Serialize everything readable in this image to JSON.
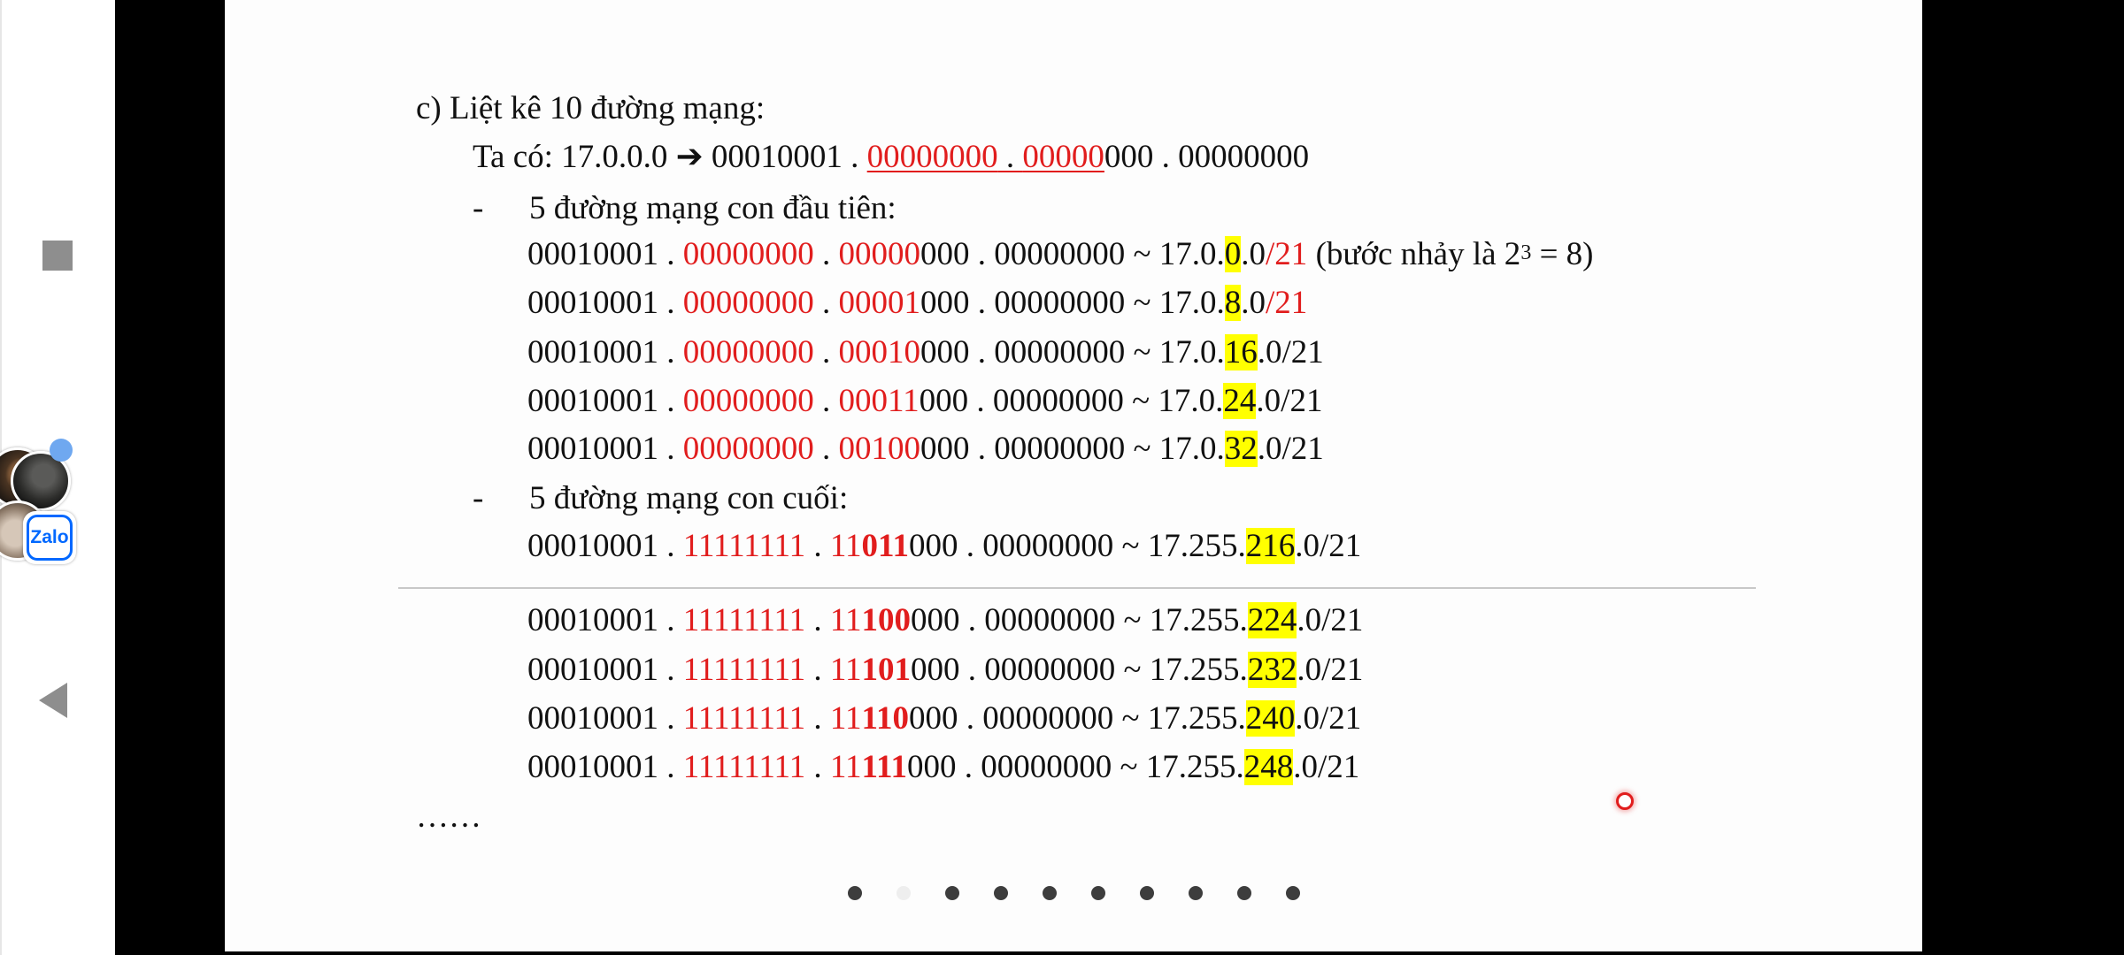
{
  "slide": {
    "heading": "c)  Liệt kê 10 đường mạng:",
    "intro": {
      "prefix": "Ta có: 17.0.0.0 ",
      "arrow": "➔",
      "octet1": " 00010001 . ",
      "octet2": "00000000",
      "dot": " . ",
      "octet3a": "00000",
      "octet3b": "000 . 00000000"
    },
    "section_first": {
      "bullet": "-",
      "title": "5 đường mạng con đầu tiên:"
    },
    "first_rows": [
      {
        "a": "00010001 . ",
        "r1": "00000000",
        "d1": " . ",
        "r2": "00000",
        "b2": "",
        "c": "000 . 00000000 ~ 17.0.",
        "h": "0",
        "t": ".0",
        "m": "/21",
        "note1": " (bước nhảy là 2",
        "sup": "3",
        "note2": " = 8)"
      },
      {
        "a": "00010001 . ",
        "r1": "00000000",
        "d1": " . ",
        "r2": "00001",
        "b2": "",
        "c": "000 . 00000000 ~ 17.0.",
        "h": "8",
        "t": ".0",
        "m": "/21"
      },
      {
        "a": "00010001 . ",
        "r1": "00000000",
        "d1": " . ",
        "r2": "00010",
        "b2": "",
        "c": "000 . 00000000 ~ 17.0.",
        "h": "16",
        "t": ".0/21"
      },
      {
        "a": "00010001 . ",
        "r1": "00000000",
        "d1": " . ",
        "r2": "00011",
        "b2": "",
        "c": "000 . 00000000 ~ 17.0.",
        "h": "24",
        "t": ".0/21"
      },
      {
        "a": "00010001 . ",
        "r1": "00000000",
        "d1": " . ",
        "r2": "00100",
        "b2": "",
        "c": "000 . 00000000 ~ 17.0.",
        "h": "32",
        "t": ".0/21"
      }
    ],
    "section_last": {
      "bullet": "-",
      "title": "5 đường mạng con cuối:"
    },
    "last_rows": [
      {
        "a": "00010001 . ",
        "r1": "11111111",
        "d1": " . ",
        "r2": "11",
        "b2": "011",
        "c": "000 . 00000000 ~ 17.255.",
        "h": "216",
        "t": ".0/21"
      },
      {
        "a": "00010001 . ",
        "r1": "11111111",
        "d1": " . ",
        "r2": "11",
        "b2": "100",
        "c": "000 . 00000000 ~ 17.255.",
        "h": "224",
        "t": ".0/21"
      },
      {
        "a": "00010001 . ",
        "r1": "11111111",
        "d1": " . ",
        "r2": "11",
        "b2": "101",
        "c": "000 . 00000000 ~ 17.255.",
        "h": "232",
        "t": ".0/21"
      },
      {
        "a": "00010001 . ",
        "r1": "11111111",
        "d1": " . ",
        "r2": "11",
        "b2": "110",
        "c": "000 . 00000000 ~ 17.255.",
        "h": "240",
        "t": ".0/21"
      },
      {
        "a": "00010001 . ",
        "r1": "11111111",
        "d1": " . ",
        "r2": "11",
        "b2": "111",
        "c": "000 . 00000000 ~ 17.255.",
        "h": "248",
        "t": ".0/21"
      }
    ],
    "ellipsis": "……"
  },
  "floating_bubble": {
    "app_label": "Zalo"
  },
  "pagination": {
    "count": 10,
    "active_index": 1
  },
  "colors": {
    "accent_red": "#e11d1d",
    "highlight": "#ffff00",
    "zalo_blue": "#0068ff"
  }
}
